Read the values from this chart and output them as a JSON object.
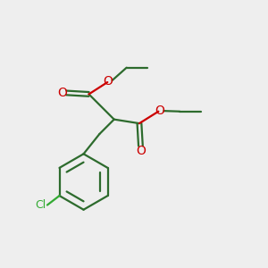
{
  "bg_color": "#eeeeee",
  "bond_color": "#2d6b2d",
  "o_color": "#cc0000",
  "cl_color": "#33aa33",
  "line_width": 1.6,
  "figsize": [
    3.0,
    3.0
  ],
  "dpi": 100,
  "xlim": [
    0,
    10
  ],
  "ylim": [
    0,
    10
  ]
}
